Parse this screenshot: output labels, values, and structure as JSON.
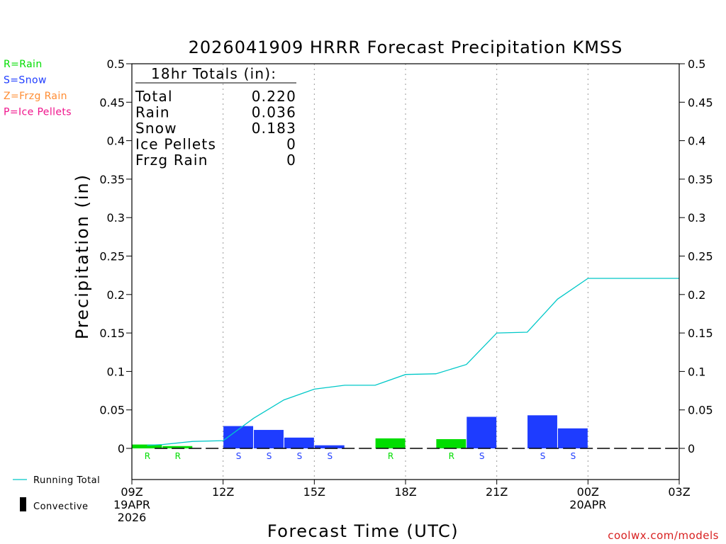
{
  "header": {
    "title": "2026041909 HRRR Forecast Precipitation KMSS"
  },
  "legend_types": [
    {
      "label": "R=Rain",
      "color": "#00dd00"
    },
    {
      "label": "S=Snow",
      "color": "#1e3cff"
    },
    {
      "label": "Z=Frzg Rain",
      "color": "#ff8c32"
    },
    {
      "label": "P=Ice Pellets",
      "color": "#f0148c"
    }
  ],
  "totals": {
    "heading": "18hr Totals (in):",
    "rows": [
      {
        "label": "Total",
        "value": "0.220"
      },
      {
        "label": "Rain",
        "value": "0.036"
      },
      {
        "label": "Snow",
        "value": "0.183"
      },
      {
        "label": "Ice Pellets",
        "value": "0"
      },
      {
        "label": "Frzg Rain",
        "value": "0"
      }
    ]
  },
  "legend_series": {
    "running_total": "Running Total",
    "convective": "Convective"
  },
  "footer": {
    "credit": "coolwx.com/models"
  },
  "colors": {
    "rain": "#00dd00",
    "snow": "#1e3cff",
    "running_total": "#00c8c8",
    "credit": "#d81f1f"
  },
  "chart_data": {
    "type": "bar",
    "title": "2026041909 HRRR Forecast Precipitation KMSS",
    "xlabel": "Forecast Time (UTC)",
    "ylabel": "Precipitation (in)",
    "ylim": [
      -0.04,
      0.5
    ],
    "xlim_hours": [
      0,
      18
    ],
    "y_ticks": [
      "0",
      "0.05",
      "0.1",
      "0.15",
      "0.2",
      "0.25",
      "0.3",
      "0.35",
      "0.4",
      "0.45",
      "0.5"
    ],
    "y_tick_values": [
      0,
      0.05,
      0.1,
      0.15,
      0.2,
      0.25,
      0.3,
      0.35,
      0.4,
      0.45,
      0.5
    ],
    "x_ticks": [
      {
        "hour": 0,
        "lines": [
          "09Z",
          "19APR",
          "2026"
        ]
      },
      {
        "hour": 3,
        "lines": [
          "12Z"
        ]
      },
      {
        "hour": 6,
        "lines": [
          "15Z"
        ]
      },
      {
        "hour": 9,
        "lines": [
          "18Z"
        ]
      },
      {
        "hour": 12,
        "lines": [
          "21Z"
        ]
      },
      {
        "hour": 15,
        "lines": [
          "00Z",
          "20APR"
        ]
      },
      {
        "hour": 18,
        "lines": [
          "03Z"
        ]
      }
    ],
    "grid": "vertical dotted at 3-hour intervals",
    "hourly_bars": [
      {
        "hour": 1,
        "value": 0.005,
        "type": "R"
      },
      {
        "hour": 2,
        "value": 0.003,
        "type": "R"
      },
      {
        "hour": 3,
        "value": 0.0,
        "type": ""
      },
      {
        "hour": 4,
        "value": 0.029,
        "type": "S"
      },
      {
        "hour": 5,
        "value": 0.024,
        "type": "S"
      },
      {
        "hour": 6,
        "value": 0.014,
        "type": "S"
      },
      {
        "hour": 7,
        "value": 0.004,
        "type": "S"
      },
      {
        "hour": 8,
        "value": 0.0,
        "type": ""
      },
      {
        "hour": 9,
        "value": 0.013,
        "type": "R"
      },
      {
        "hour": 10,
        "value": 0.0,
        "type": ""
      },
      {
        "hour": 11,
        "value": 0.012,
        "type": "R"
      },
      {
        "hour": 12,
        "value": 0.041,
        "type": "S"
      },
      {
        "hour": 13,
        "value": 0.0,
        "type": ""
      },
      {
        "hour": 14,
        "value": 0.043,
        "type": "S"
      },
      {
        "hour": 15,
        "value": 0.026,
        "type": "S"
      },
      {
        "hour": 16,
        "value": 0.0,
        "type": ""
      },
      {
        "hour": 17,
        "value": 0.0,
        "type": ""
      },
      {
        "hour": 18,
        "value": 0.0,
        "type": ""
      }
    ],
    "running_total": [
      {
        "hour": 1,
        "value": 0.005
      },
      {
        "hour": 2,
        "value": 0.009
      },
      {
        "hour": 3,
        "value": 0.01
      },
      {
        "hour": 4,
        "value": 0.039
      },
      {
        "hour": 5,
        "value": 0.063
      },
      {
        "hour": 6,
        "value": 0.077
      },
      {
        "hour": 7,
        "value": 0.082
      },
      {
        "hour": 8,
        "value": 0.082
      },
      {
        "hour": 9,
        "value": 0.096
      },
      {
        "hour": 10,
        "value": 0.097
      },
      {
        "hour": 11,
        "value": 0.109
      },
      {
        "hour": 12,
        "value": 0.15
      },
      {
        "hour": 13,
        "value": 0.151
      },
      {
        "hour": 14,
        "value": 0.194
      },
      {
        "hour": 15,
        "value": 0.221
      },
      {
        "hour": 16,
        "value": 0.221
      },
      {
        "hour": 17,
        "value": 0.221
      },
      {
        "hour": 18,
        "value": 0.221
      }
    ],
    "convective": [],
    "series": [
      {
        "name": "Rain",
        "code": "R"
      },
      {
        "name": "Snow",
        "code": "S"
      },
      {
        "name": "Running Total",
        "code": "line"
      }
    ]
  }
}
